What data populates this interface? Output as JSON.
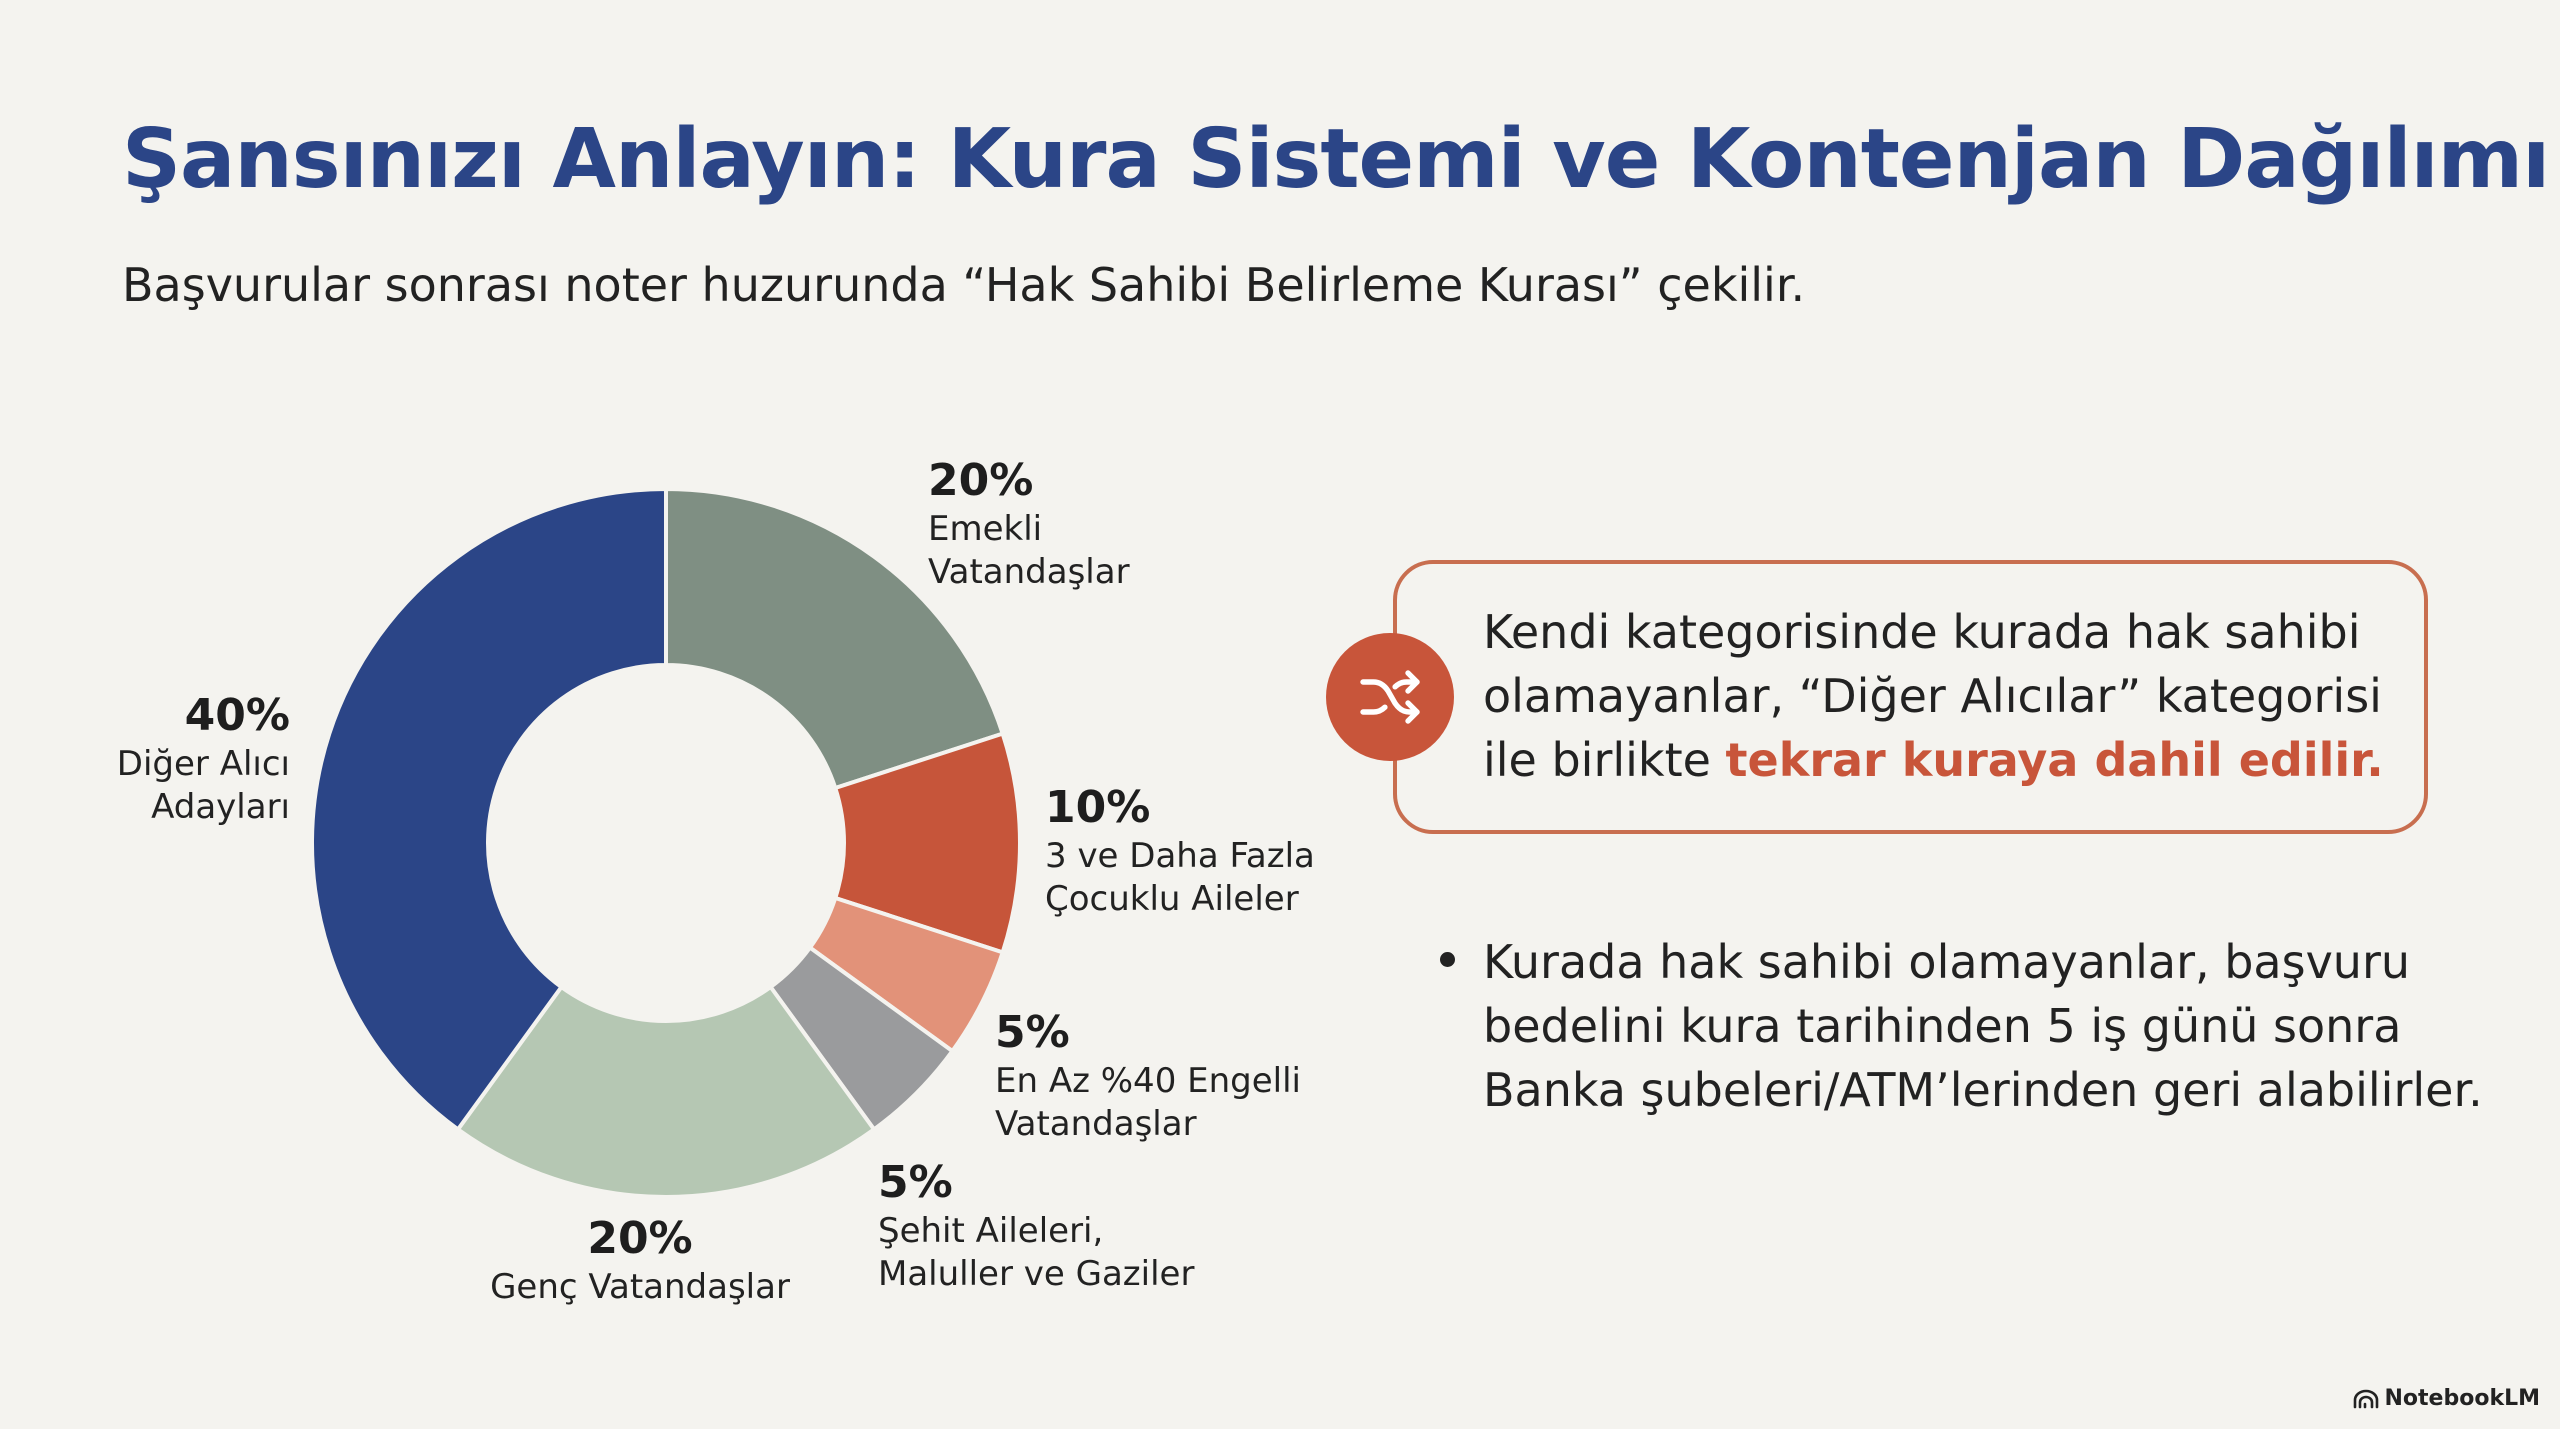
{
  "page": {
    "title": "Şansınızı Anlayın: Kura Sistemi ve Kontenjan Dağılımı",
    "subtitle": "Başvurular sonrası noter huzurunda “Hak Sahibi Belirleme Kurası” çekilir."
  },
  "callout": {
    "icon": "shuffle-icon",
    "text_before": "Kendi kategorisinde kurada hak sahibi olamayanlar, “Diğer Alıcılar” kategorisi ile birlikte ",
    "highlight": "tekrar kuraya dahil edilir."
  },
  "bullet": {
    "text": "Kurada hak sahibi olamayanlar, başvuru bedelini kura tarihinden 5 iş günü sonra Banka şubeleri/ATM’lerinden geri alabilirler."
  },
  "brand": {
    "logo_icon": "notebooklm-logo-icon",
    "name": "NotebookLM"
  },
  "colors": {
    "title": "#2b4587",
    "accent": "#c8553a",
    "callout_border": "#c86e4f"
  },
  "chart_data": {
    "type": "pie",
    "donut": true,
    "slices": [
      {
        "label_lines": [
          "Emekli",
          "Vatandaşlar"
        ],
        "value": 20,
        "value_label": "20%",
        "color": "#7f8f83"
      },
      {
        "label_lines": [
          "3 ve Daha Fazla",
          "Çocuklu Aileler"
        ],
        "value": 10,
        "value_label": "10%",
        "color": "#c6553a"
      },
      {
        "label_lines": [
          "En Az %40 Engelli",
          "Vatandaşlar"
        ],
        "value": 5,
        "value_label": "5%",
        "color": "#e29279"
      },
      {
        "label_lines": [
          "Şehit Aileleri,",
          "Maluller ve Gaziler"
        ],
        "value": 5,
        "value_label": "5%",
        "color": "#9a9b9d"
      },
      {
        "label_lines": [
          "Genç Vatandaşlar"
        ],
        "value": 20,
        "value_label": "20%",
        "color": "#b5c7b3"
      },
      {
        "label_lines": [
          "Diğer Alıcı",
          "Adayları"
        ],
        "value": 40,
        "value_label": "40%",
        "color": "#2b4587"
      }
    ]
  }
}
